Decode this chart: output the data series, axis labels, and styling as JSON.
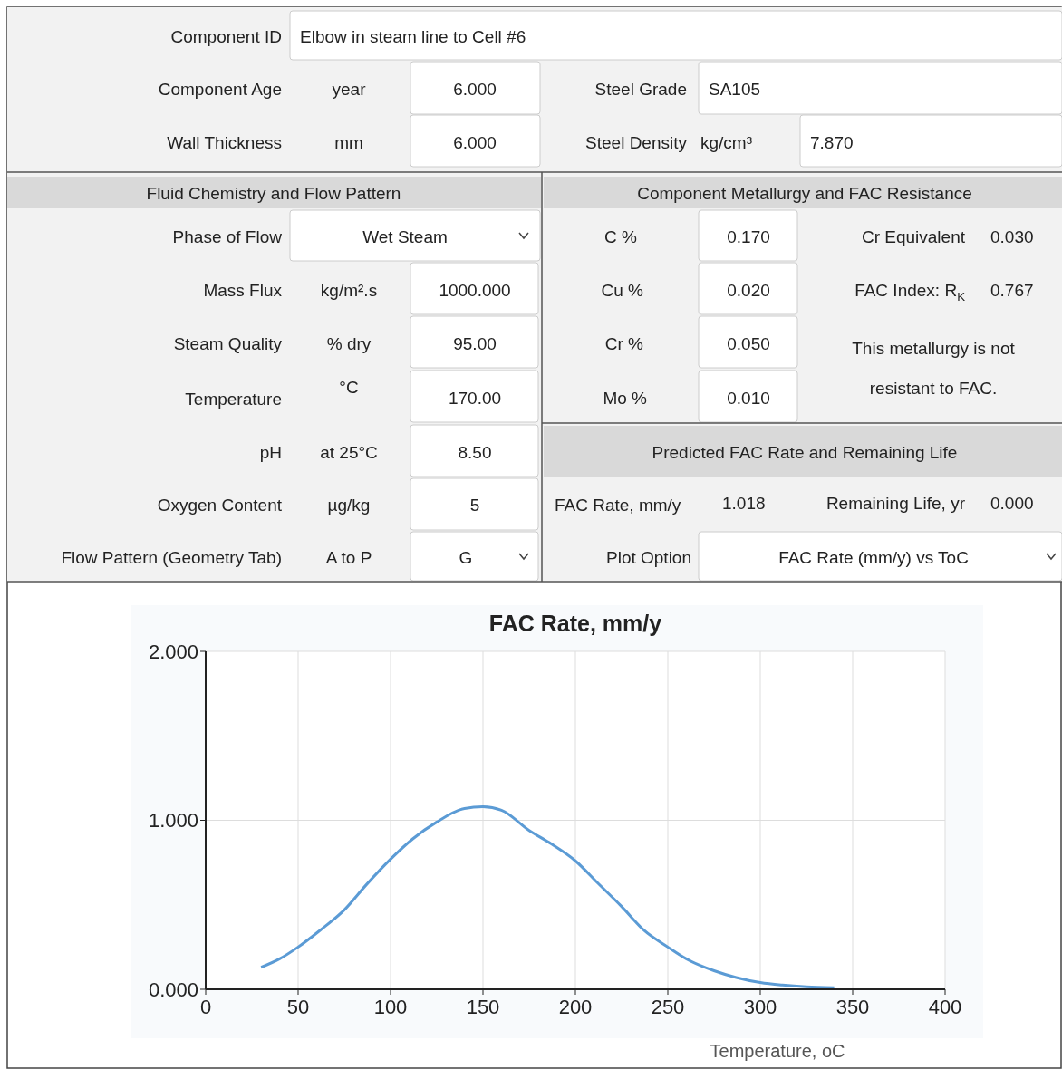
{
  "chart_data": [
    {
      "type": "other",
      "annotations": [
        "Component ID",
        "Elbow in steam line to Cell #6",
        "Component Age",
        "year",
        "6.000",
        "Steel Grade",
        "SA105",
        "Wall Thickness",
        "mm",
        "6.000",
        "Steel Density",
        "kg/cm³",
        "7.870",
        "Fluid Chemistry and Flow Pattern",
        "Component Metallurgy and FAC Resistance",
        "Phase of Flow",
        "Wet Steam",
        "C %",
        "0.170",
        "Cr Equivalent",
        "0.030",
        "Mass Flux",
        "kg/m².s",
        "1000.000",
        "Cu %",
        "0.020",
        "FAC Index: R$_{K}$",
        "0.767",
        "Steam Quality",
        "% dry",
        "95.00",
        "Cr %",
        "0.050",
        "This metallurgy is not",
        "resistant to FAC.",
        "Temperature",
        "°C",
        "170.00",
        "Mo %",
        "0.010",
        "pH",
        "at 25°C",
        "8.50",
        "Predicted FAC Rate and Remaining Life",
        "Oxygen Content",
        "µg/kg",
        "5",
        "FAC Rate, mm/y",
        "1.018",
        "Remaining Life, yr",
        "0.000",
        "Flow Pattern (Geometry Tab)",
        "A to P",
        "G",
        "Plot Option",
        "FAC Rate (mm/y) vs ToC"
      ]
    },
    {
      "type": "line",
      "title": "FAC Rate, mm/y",
      "xlabel": "Temperature, oC",
      "xlim": [
        0,
        400
      ],
      "xticks": [
        0,
        50,
        100,
        150,
        200,
        250,
        300,
        350,
        400
      ],
      "ylim": [
        0,
        2
      ],
      "yticks": [
        {
          "value": 0,
          "label": "0.000"
        },
        {
          "value": 1,
          "label": "1.000"
        },
        {
          "value": 2,
          "label": "2.000"
        }
      ],
      "grid": true,
      "series": [
        {
          "color": "#5b9bd5",
          "x": [
            30,
            40,
            50,
            62,
            75,
            87,
            100,
            112,
            125,
            140,
            150,
            160,
            175,
            187,
            200,
            212,
            225,
            237,
            250,
            260,
            275,
            287,
            300,
            312,
            325,
            340
          ],
          "values": [
            0.13,
            0.18,
            0.25,
            0.35,
            0.47,
            0.62,
            0.77,
            0.89,
            0.99,
            1.07,
            1.08,
            1.06,
            0.94,
            0.86,
            0.76,
            0.63,
            0.49,
            0.35,
            0.25,
            0.18,
            0.11,
            0.07,
            0.04,
            0.025,
            0.015,
            0.01
          ]
        }
      ]
    }
  ]
}
